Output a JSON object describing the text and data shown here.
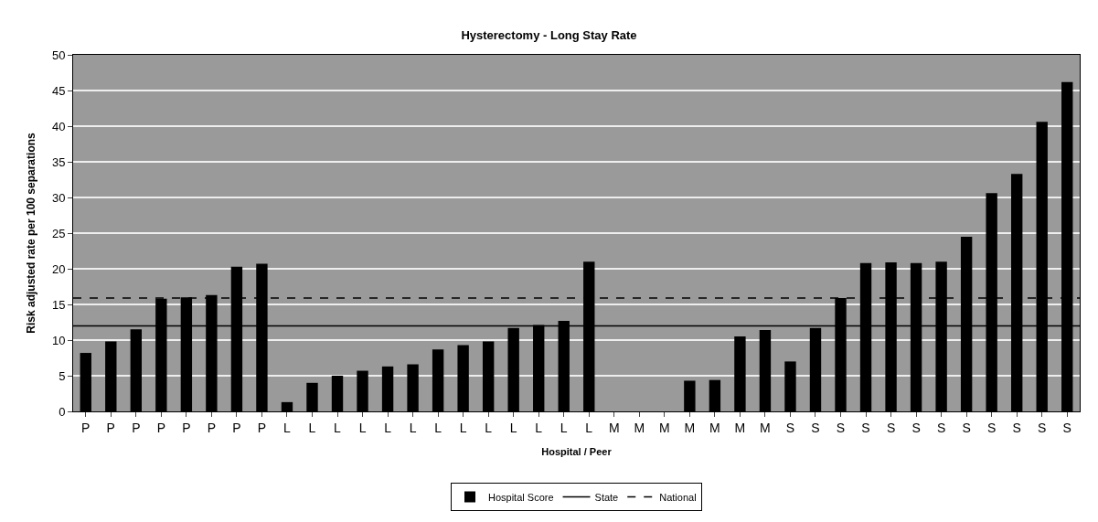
{
  "chart_data": {
    "type": "bar",
    "title": "Hysterectomy - Long Stay Rate",
    "xlabel": "Hospital / Peer",
    "ylabel": "Risk adjusted rate per 100 separations",
    "categories": [
      "P",
      "P",
      "P",
      "P",
      "P",
      "P",
      "P",
      "P",
      "L",
      "L",
      "L",
      "L",
      "L",
      "L",
      "L",
      "L",
      "L",
      "L",
      "L",
      "L",
      "L",
      "M",
      "M",
      "M",
      "M",
      "M",
      "M",
      "M",
      "S",
      "S",
      "S",
      "S",
      "S",
      "S",
      "S",
      "S",
      "S",
      "S",
      "S",
      "S"
    ],
    "series": [
      {
        "name": "Hospital Score",
        "color": "#000000",
        "values": [
          8.2,
          9.8,
          11.5,
          15.8,
          16,
          16.3,
          20.3,
          20.7,
          1.3,
          4,
          5,
          5.7,
          6.3,
          6.6,
          8.7,
          9.3,
          9.8,
          11.7,
          12.1,
          12.7,
          21,
          0,
          0,
          0,
          4.3,
          4.4,
          10.5,
          11.4,
          7,
          11.7,
          15.9,
          20.8,
          20.9,
          20.8,
          21,
          24.5,
          30.6,
          33.3,
          40.6,
          46.2
        ]
      }
    ],
    "ref_lines": [
      {
        "axis": "y",
        "value": 12,
        "label": "State",
        "color": "#000000",
        "line_style": "solid"
      },
      {
        "axis": "y",
        "value": 15.9,
        "label": "National",
        "color": "#000000",
        "line_style": "dashed"
      }
    ],
    "ylim": [
      0,
      50
    ],
    "yticks": [
      0,
      5,
      10,
      15,
      20,
      25,
      30,
      35,
      40,
      45,
      50
    ],
    "grid": "y",
    "legend": "bottom"
  }
}
